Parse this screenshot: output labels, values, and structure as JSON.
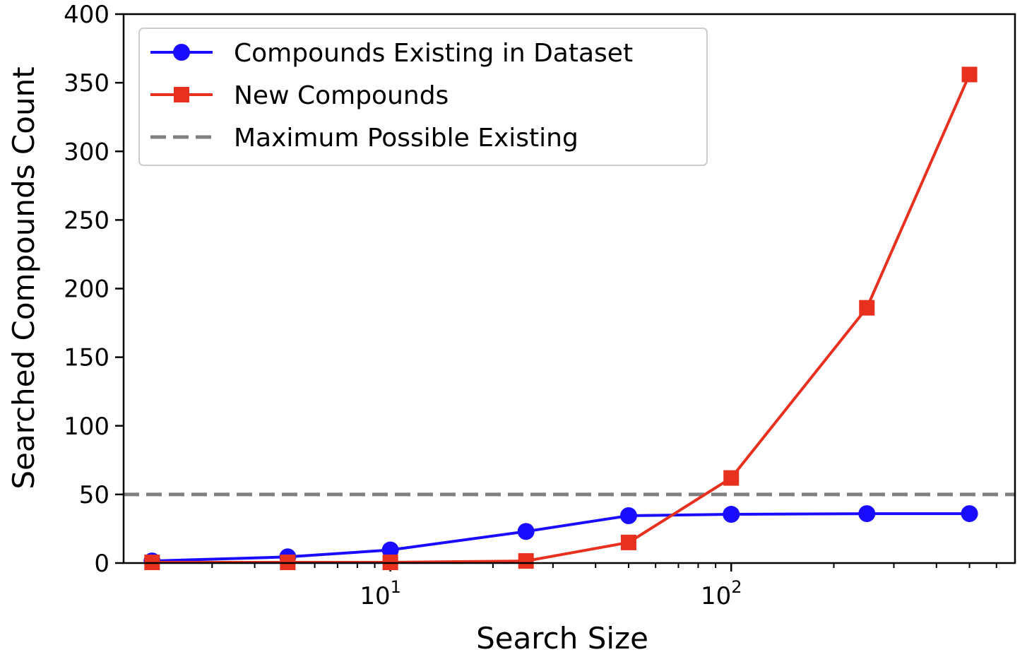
{
  "chart_data": {
    "type": "line",
    "title": "",
    "xlabel": "Search Size",
    "ylabel": "Searched Compounds Count",
    "x_scale": "log",
    "xlim": [
      1.65,
      680
    ],
    "ylim": [
      0,
      400
    ],
    "x_ticks": [
      {
        "value": 10,
        "base": "10",
        "exp": "1"
      },
      {
        "value": 100,
        "base": "10",
        "exp": "2"
      }
    ],
    "y_ticks": [
      0,
      50,
      100,
      150,
      200,
      250,
      300,
      350,
      400
    ],
    "legend_position": "upper-left",
    "grid": false,
    "series": [
      {
        "name": "Compounds Existing in Dataset",
        "color": "#1a0dff",
        "marker": "circle",
        "x": [
          2,
          5,
          10,
          25,
          50,
          100,
          250,
          500
        ],
        "y": [
          1.5,
          4.5,
          9.5,
          23,
          34.5,
          35.5,
          36,
          36
        ]
      },
      {
        "name": "New Compounds",
        "color": "#e8301e",
        "marker": "square",
        "x": [
          2,
          5,
          10,
          25,
          50,
          100,
          250,
          500
        ],
        "y": [
          0.5,
          0.5,
          0.5,
          1.5,
          15,
          62,
          186,
          356
        ]
      }
    ],
    "reference_lines": [
      {
        "name": "Maximum Possible Existing",
        "y": 50,
        "color": "#808080",
        "style": "dashed"
      }
    ]
  }
}
